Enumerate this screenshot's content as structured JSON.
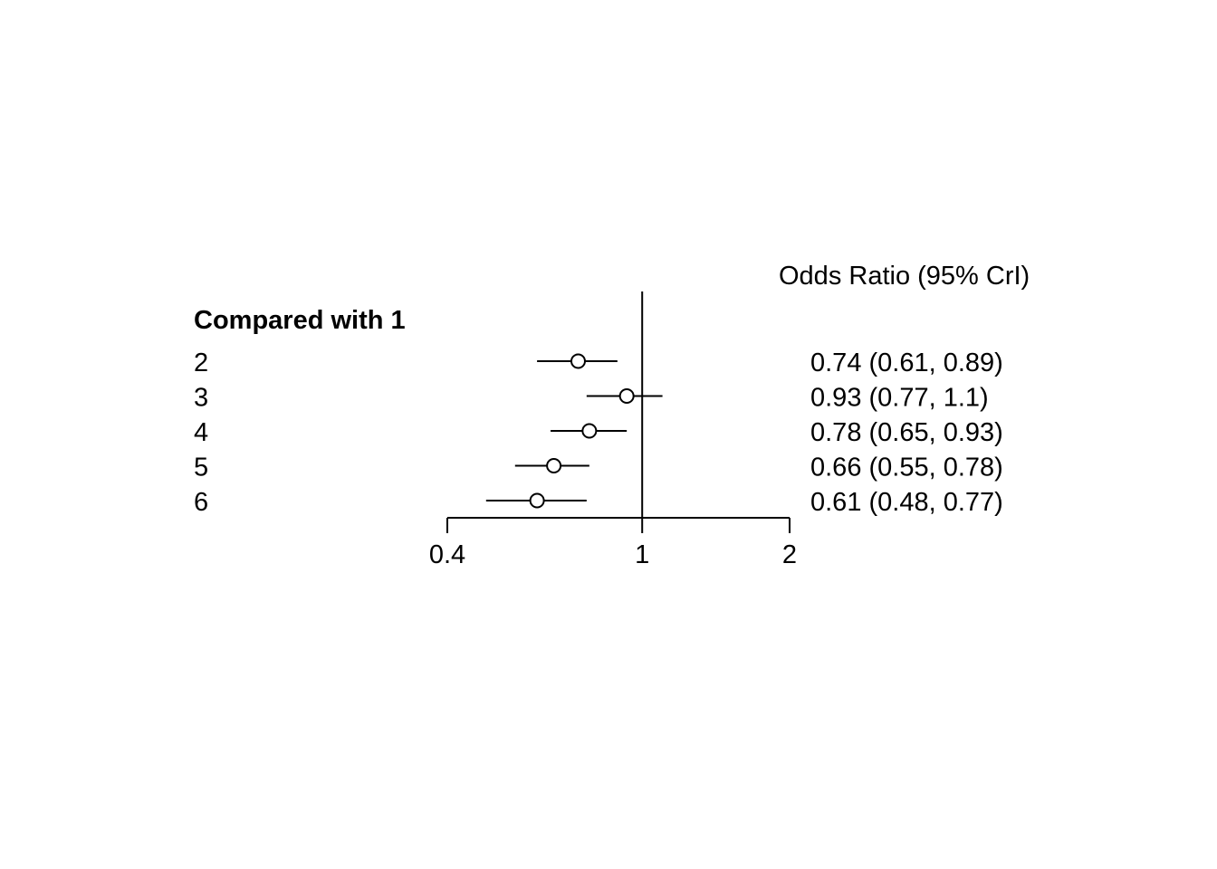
{
  "chart_data": {
    "type": "forest",
    "header_left": "Compared with 1",
    "header_right": "Odds Ratio (95% CrI)",
    "x_scale": "log",
    "xlim": [
      0.4,
      2
    ],
    "reference_line": 1,
    "x_ticks": [
      "0.4",
      "1",
      "2"
    ],
    "rows": [
      {
        "label": "2",
        "estimate": 0.74,
        "lower": 0.61,
        "upper": 0.89,
        "text": "0.74 (0.61, 0.89)"
      },
      {
        "label": "3",
        "estimate": 0.93,
        "lower": 0.77,
        "upper": 1.1,
        "text": "0.93 (0.77, 1.1)"
      },
      {
        "label": "4",
        "estimate": 0.78,
        "lower": 0.65,
        "upper": 0.93,
        "text": "0.78 (0.65, 0.93)"
      },
      {
        "label": "5",
        "estimate": 0.66,
        "lower": 0.55,
        "upper": 0.78,
        "text": "0.66 (0.55, 0.78)"
      },
      {
        "label": "6",
        "estimate": 0.61,
        "lower": 0.48,
        "upper": 0.77,
        "text": "0.61 (0.48, 0.77)"
      }
    ]
  }
}
